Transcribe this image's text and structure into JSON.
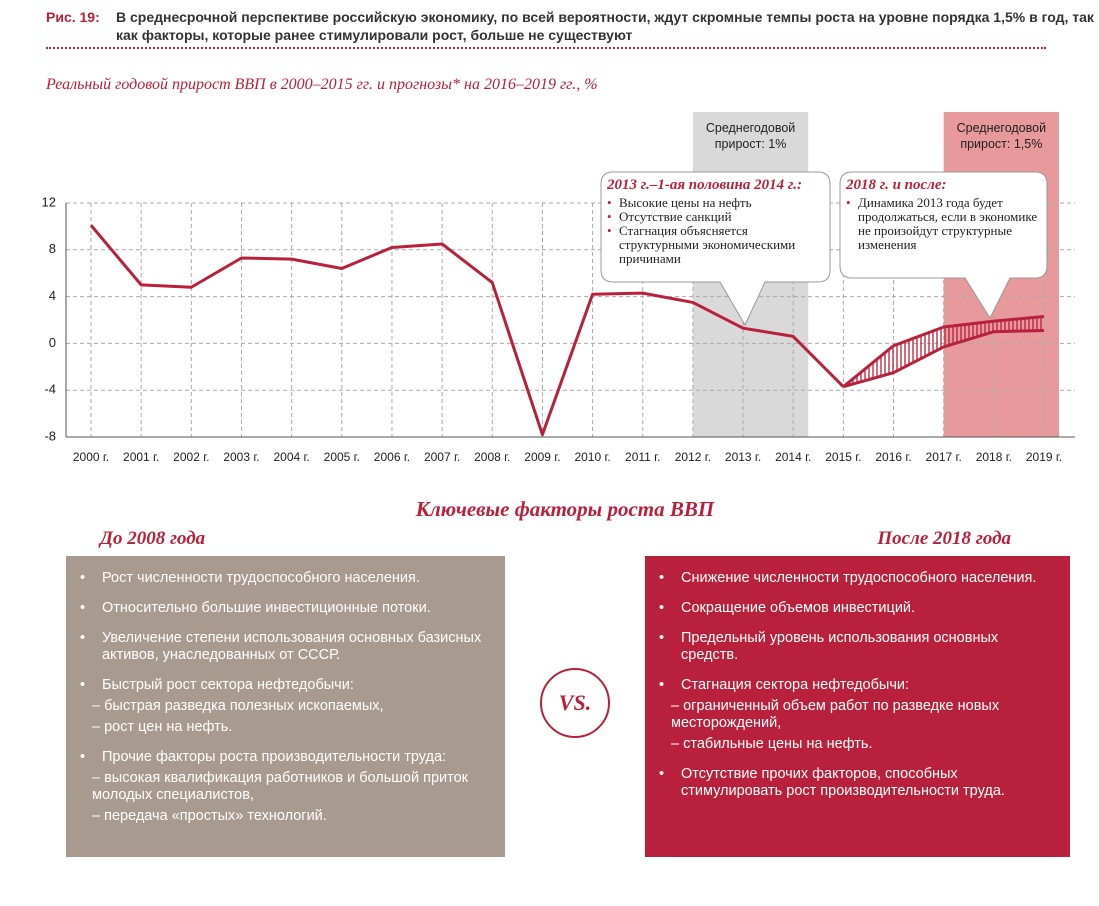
{
  "figure": {
    "label": "Рис. 19:",
    "caption": "В среднесрочной перспективе российскую экономику, по всей вероятности, ждут скромные темпы роста на уровне порядка 1,5% в год, так как факторы, которые ранее стимулировали рост, больше не существуют"
  },
  "chart_data": {
    "type": "line",
    "title": "Реальный годовой прирост ВВП в 2000–2015 гг. и прогнозы* на 2016–2019 гг., %",
    "categories": [
      "2000 г.",
      "2001 г.",
      "2002 г.",
      "2003 г.",
      "2004 г.",
      "2005 г.",
      "2006 г.",
      "2007 г.",
      "2008 г.",
      "2009 г.",
      "2010 г.",
      "2011 г.",
      "2012 г.",
      "2013 г.",
      "2014 г.",
      "2015 г.",
      "2016 г.",
      "2017 г.",
      "2018 г.",
      "2019 г."
    ],
    "series": [
      {
        "color": "#b9203b",
        "values": [
          10.1,
          5.0,
          4.8,
          7.3,
          7.2,
          6.4,
          8.2,
          8.5,
          5.2,
          -7.8,
          4.2,
          4.3,
          3.5,
          1.3,
          0.6,
          -3.7,
          null,
          null,
          null,
          null
        ]
      },
      {
        "color": "#b9203b",
        "values": [
          null,
          null,
          null,
          null,
          null,
          null,
          null,
          null,
          null,
          null,
          null,
          null,
          null,
          null,
          null,
          -3.7,
          -0.2,
          1.4,
          1.9,
          2.3
        ]
      },
      {
        "color": "#b9203b",
        "values": [
          null,
          null,
          null,
          null,
          null,
          null,
          null,
          null,
          null,
          null,
          null,
          null,
          null,
          null,
          null,
          -3.7,
          -2.5,
          -0.3,
          1.0,
          1.1
        ]
      }
    ],
    "ylim": [
      -8,
      12
    ],
    "yticks": [
      -8,
      -4,
      0,
      4,
      8,
      12
    ],
    "grid": true,
    "highlight_ranges": [
      {
        "from": 12,
        "to": 14,
        "color": "#d9d9d9",
        "label": "Среднегодовой прирост: 1%"
      },
      {
        "from": 17,
        "to": 19,
        "color": "#e8999b",
        "label": "Среднегодовой прирост: 1,5%"
      }
    ],
    "annotations": [
      {
        "title": "2013 г.–1-ая половина 2014 г.:",
        "points": [
          "Высокие цены на нефть",
          "Отсутствие санкций",
          "Стагнация объясняется структурными экономическими причинами"
        ]
      },
      {
        "title": "2018 г. и после:",
        "points": [
          "Динамика 2013 года будет продолжаться, если в экономике не произойдут структурные изменения"
        ]
      }
    ]
  },
  "comparison": {
    "title": "Ключевые факторы роста ВВП",
    "vs": "VS.",
    "left": {
      "title": "До 2008 года",
      "items": [
        {
          "text": "Рост численности трудоспособного населения.",
          "subitems": []
        },
        {
          "text": "Относительно большие инвестиционные потоки.",
          "subitems": []
        },
        {
          "text": "Увеличение степени использования основных базисных активов, унаследованных от СССР.",
          "subitems": []
        },
        {
          "text": "Быстрый рост сектора нефтедобычи:",
          "subitems": [
            "– быстрая разведка полезных ископаемых,",
            "– рост цен на нефть."
          ]
        },
        {
          "text": "Прочие факторы роста производительности труда:",
          "subitems": [
            "– высокая квалификация работников и большой приток молодых специалистов,",
            "– передача «простых» технологий."
          ]
        }
      ]
    },
    "right": {
      "title": "После 2018 года",
      "items": [
        {
          "text": "Снижение численности трудоспособного населения.",
          "subitems": []
        },
        {
          "text": "Сокращение объемов инвестиций.",
          "subitems": []
        },
        {
          "text": "Предельный уровень использования основных средств.",
          "subitems": []
        },
        {
          "text": "Стагнация сектора нефтедобычи:",
          "subitems": [
            "– ограниченный объем работ по разведке новых месторождений,",
            "– стабильные цены на нефть."
          ]
        },
        {
          "text": "Отсутствие прочих факторов, способных стимулировать рост производительности труда.",
          "subitems": []
        }
      ]
    }
  }
}
